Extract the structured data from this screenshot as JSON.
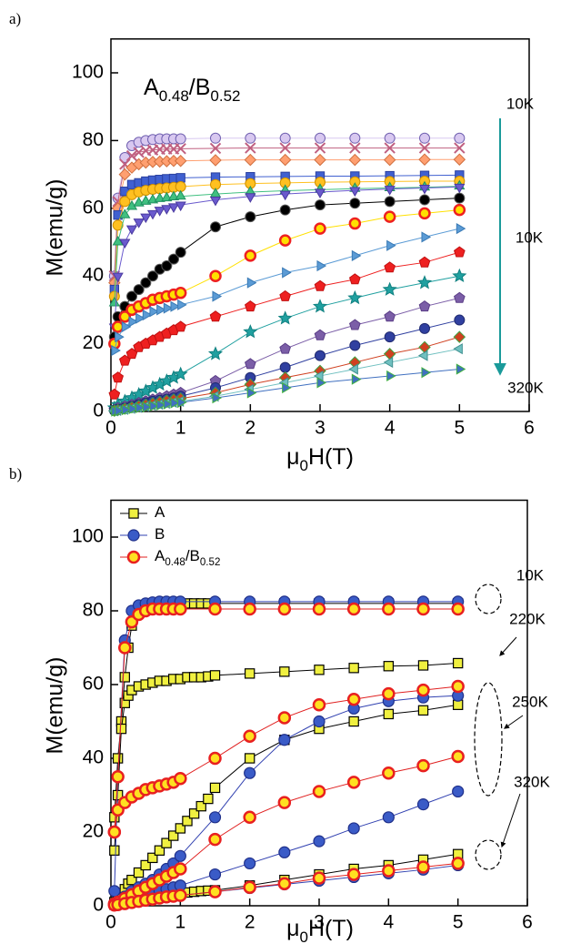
{
  "chart_data": [
    {
      "type": "line",
      "panel_label": "a)",
      "inset_label": "A0.48/B0.52",
      "x_label": "μ0H(T)",
      "y_label": "M(emu/g)",
      "xlim": [
        0,
        6
      ],
      "ylim": [
        0,
        110
      ],
      "xticks": [
        0,
        1,
        2,
        3,
        4,
        5,
        6
      ],
      "yticks": [
        0,
        20,
        40,
        60,
        80,
        100
      ],
      "annotations": [
        "10K",
        "10K",
        "320K"
      ],
      "x": [
        0.05,
        0.1,
        0.2,
        0.3,
        0.4,
        0.5,
        0.6,
        0.7,
        0.8,
        0.9,
        1,
        1.5,
        2,
        2.5,
        3,
        3.5,
        4,
        4.5,
        5
      ],
      "series": [
        {
          "color": "#d8c8f0",
          "edge": "#7060b0",
          "marker": "circle",
          "values": [
            40,
            63,
            75,
            78.5,
            79.5,
            80,
            80.3,
            80.5,
            80.5,
            80.5,
            80.5,
            80.7,
            80.7,
            80.7,
            80.7,
            80.7,
            80.7,
            80.7,
            80.7
          ]
        },
        {
          "color": "#c06080",
          "edge": "#c06080",
          "marker": "x",
          "values": [
            40,
            62,
            73,
            75.5,
            76.5,
            77,
            77.2,
            77.4,
            77.5,
            77.5,
            77.6,
            77.7,
            77.8,
            77.8,
            77.8,
            77.8,
            77.8,
            77.8,
            77.8
          ]
        },
        {
          "color": "#ff9f70",
          "edge": "#d07040",
          "marker": "diamond",
          "values": [
            38,
            60,
            70,
            72,
            73,
            73.5,
            73.7,
            73.8,
            73.9,
            74,
            74,
            74.2,
            74.3,
            74.3,
            74.3,
            74.3,
            74.3,
            74.4,
            74.4
          ]
        },
        {
          "color": "#4060d0",
          "edge": "#2a40a0",
          "marker": "square",
          "values": [
            36,
            58,
            65,
            67,
            67.5,
            68,
            68.3,
            68.5,
            68.7,
            68.8,
            69,
            69.2,
            69.3,
            69.4,
            69.5,
            69.5,
            69.6,
            69.7,
            69.8
          ]
        },
        {
          "color": "#ffc020",
          "edge": "#d09000",
          "marker": "circle",
          "values": [
            34,
            55,
            62,
            64,
            64.8,
            65.3,
            65.6,
            65.8,
            66,
            66.2,
            66.4,
            67,
            67.3,
            67.5,
            67.7,
            67.8,
            67.9,
            68,
            68
          ]
        },
        {
          "color": "#40c080",
          "edge": "#209060",
          "marker": "triangle",
          "values": [
            32,
            50,
            58,
            60.5,
            61.5,
            62,
            62.4,
            62.8,
            63,
            63.3,
            63.5,
            64.2,
            64.8,
            65.2,
            65.5,
            65.8,
            66,
            66.2,
            66.5
          ]
        },
        {
          "color": "#6a5acd",
          "edge": "#4a3aa0",
          "marker": "triangle-down",
          "values": [
            25,
            40,
            50,
            54,
            56,
            57.5,
            58.5,
            59.5,
            60,
            60.5,
            61,
            62.5,
            63.5,
            64.2,
            64.8,
            65.3,
            65.7,
            66,
            66.3
          ]
        },
        {
          "color": "#000000",
          "edge": "#555555",
          "marker": "circle",
          "values": [
            22,
            28,
            31,
            34,
            36,
            38,
            40,
            42,
            43,
            45,
            47,
            54.5,
            57.5,
            59.5,
            61,
            61.5,
            62,
            62.5,
            63
          ]
        },
        {
          "color": "#ffe000",
          "edge": "#ee2020",
          "marker": "circle",
          "values": [
            20,
            25,
            28,
            30,
            31,
            32,
            33,
            33.5,
            34,
            34.5,
            35,
            40,
            46,
            50.5,
            54,
            55.5,
            57.5,
            58.5,
            59.5
          ]
        },
        {
          "color": "#5b9bd5",
          "edge": "#3a7ab5",
          "marker": "triangle-right",
          "values": [
            18,
            22,
            25,
            26.5,
            27.5,
            28.5,
            29.5,
            30,
            30.5,
            31,
            31.5,
            34,
            38,
            41,
            43,
            46,
            49,
            51.5,
            54
          ]
        },
        {
          "color": "#ee2020",
          "edge": "#c01010",
          "marker": "pentagon",
          "values": [
            5,
            10,
            15,
            17,
            19,
            20,
            21,
            22,
            23,
            24,
            25,
            28,
            31,
            34,
            37,
            39,
            42.5,
            44,
            47
          ]
        },
        {
          "color": "#20a0a0",
          "edge": "#108080",
          "marker": "star",
          "values": [
            1,
            2,
            3,
            4,
            5,
            6,
            7,
            8,
            9,
            10,
            11,
            17,
            23.5,
            27.5,
            31,
            33.5,
            36,
            38,
            40
          ]
        },
        {
          "color": "#7b5ea7",
          "edge": "#5b3e87",
          "marker": "pentagon",
          "values": [
            0.5,
            1,
            1.5,
            2,
            2.5,
            3,
            3.5,
            4,
            4.5,
            5,
            5.5,
            9,
            14,
            18.5,
            22.5,
            25.5,
            28,
            31,
            33.5
          ]
        },
        {
          "color": "#3040a0",
          "edge": "#202a70",
          "marker": "circle",
          "values": [
            0.3,
            0.6,
            1,
            1.5,
            2,
            2.5,
            3,
            3.3,
            3.6,
            4,
            4.5,
            7,
            10,
            13,
            16.5,
            19.5,
            22,
            24.5,
            27
          ]
        },
        {
          "color": "#d04020",
          "edge": "#40a040",
          "marker": "diamond",
          "values": [
            0.2,
            0.4,
            0.8,
            1.2,
            1.6,
            2,
            2.4,
            2.8,
            3.2,
            3.5,
            3.8,
            5.5,
            8,
            10,
            12,
            14.5,
            17,
            19,
            22
          ]
        },
        {
          "color": "#70c0c0",
          "edge": "#409090",
          "marker": "triangle-left",
          "values": [
            0.2,
            0.3,
            0.6,
            0.9,
            1.2,
            1.5,
            1.8,
            2.1,
            2.4,
            2.7,
            3,
            4.5,
            6.5,
            8.5,
            10.5,
            12.5,
            14.5,
            16.5,
            18.5
          ]
        },
        {
          "color": "#4070c0",
          "edge": "#40b040",
          "marker": "triangle-right",
          "values": [
            0.1,
            0.2,
            0.5,
            0.8,
            1.1,
            1.3,
            1.6,
            1.9,
            2.2,
            2.5,
            2.7,
            4,
            5.5,
            7,
            8.5,
            9.5,
            10.5,
            11.5,
            12.5
          ]
        }
      ]
    },
    {
      "type": "line",
      "panel_label": "b)",
      "x_label": "μ0H(T)",
      "y_label": "M(emu/g)",
      "xlim": [
        0,
        6
      ],
      "ylim": [
        0,
        110
      ],
      "xticks": [
        0,
        1,
        2,
        3,
        4,
        5,
        6
      ],
      "yticks": [
        0,
        20,
        40,
        60,
        80,
        100
      ],
      "annotations": [
        "10K",
        "220K",
        "250K",
        "320K"
      ],
      "series": [
        {
          "name": "A",
          "color": "#f0f040",
          "edge": "#000000",
          "line": "#000000",
          "marker": "square",
          "x": [
            0.05,
            0.1,
            0.15,
            0.2,
            0.25,
            0.3,
            0.4,
            0.5,
            0.6,
            0.7,
            0.8,
            0.9,
            1,
            1.1,
            1.2,
            1.3,
            1.4,
            1.5,
            2,
            2.5,
            3,
            3.5,
            4,
            4.5,
            5
          ],
          "curves": [
            {
              "values": [
                24,
                40,
                50,
                62,
                70,
                76,
                80,
                81.5,
                82,
                82,
                82,
                82,
                82,
                82,
                82,
                82,
                82,
                82,
                82,
                82,
                82,
                82,
                82,
                82,
                82
              ]
            },
            {
              "values": [
                15,
                30,
                48,
                55,
                57,
                58.5,
                59.5,
                60,
                60.5,
                61,
                61,
                61.5,
                61.5,
                62,
                62,
                62,
                62.2,
                62.5,
                63,
                63.5,
                64,
                64.5,
                65,
                65.2,
                65.8
              ]
            },
            {
              "values": [
                1,
                2,
                3,
                4.5,
                6,
                7,
                9,
                11,
                13,
                15,
                17,
                19,
                21,
                23,
                25,
                27,
                29,
                32,
                40,
                45,
                48,
                50,
                52,
                53,
                54.5
              ]
            },
            {
              "values": [
                0.3,
                0.5,
                0.8,
                1,
                1.2,
                1.5,
                1.8,
                2.1,
                2.4,
                2.7,
                3,
                3.2,
                3.4,
                3.6,
                3.8,
                4,
                4.1,
                4.2,
                5.5,
                7,
                8.5,
                10,
                11,
                12.5,
                14
              ]
            }
          ]
        },
        {
          "name": "B",
          "color": "#3a5bc7",
          "edge": "#20308a",
          "line": "#3040b0",
          "marker": "circle",
          "x": [
            0.05,
            0.1,
            0.2,
            0.3,
            0.4,
            0.5,
            0.6,
            0.7,
            0.8,
            0.9,
            1,
            1.5,
            2,
            2.5,
            3,
            3.5,
            4,
            4.5,
            5
          ],
          "curves": [
            {
              "values": [
                4,
                35,
                72,
                80,
                81.5,
                82,
                82.3,
                82.5,
                82.5,
                82.5,
                82.5,
                82.5,
                82.5,
                82.5,
                82.5,
                82.5,
                82.5,
                82.5,
                82.5
              ]
            },
            {
              "values": [
                0.5,
                1,
                2.5,
                4,
                5,
                6,
                7,
                8.5,
                10,
                11.5,
                13.5,
                24,
                36,
                45,
                50,
                53.5,
                55.5,
                56.5,
                57
              ]
            },
            {
              "values": [
                0.3,
                0.6,
                1.2,
                1.8,
                2.4,
                3,
                3.5,
                4,
                4.5,
                5,
                5.5,
                8.5,
                11.5,
                14.5,
                17.5,
                21,
                24,
                27.5,
                31
              ]
            },
            {
              "values": [
                0.2,
                0.3,
                0.6,
                0.9,
                1.2,
                1.5,
                1.8,
                2.1,
                2.4,
                2.6,
                2.8,
                3.8,
                4.8,
                5.8,
                6.8,
                7.8,
                8.8,
                9.8,
                11
              ]
            }
          ]
        },
        {
          "name": "A0.48/B0.52",
          "color": "#ffe020",
          "edge": "#e82020",
          "line": "#e02020",
          "marker": "circle",
          "x": [
            0.05,
            0.1,
            0.2,
            0.3,
            0.4,
            0.5,
            0.6,
            0.7,
            0.8,
            0.9,
            1,
            1.5,
            2,
            2.5,
            3,
            3.5,
            4,
            4.5,
            5
          ],
          "curves": [
            {
              "values": [
                20,
                35,
                70,
                77,
                79,
                80,
                80.5,
                80.5,
                80.5,
                80.5,
                80.5,
                80.5,
                80.5,
                80.5,
                80.5,
                80.5,
                80.5,
                80.5,
                80.5
              ]
            },
            {
              "values": [
                20,
                26,
                28,
                29.5,
                30.5,
                31.5,
                32,
                32.5,
                33,
                33.5,
                34.5,
                40,
                46,
                51,
                54.5,
                56,
                57.5,
                58.5,
                59.5
              ]
            },
            {
              "values": [
                0.5,
                1,
                2,
                3,
                4,
                5,
                6,
                7,
                8,
                9,
                10,
                18,
                24,
                28,
                31,
                33.5,
                36,
                38,
                40.5
              ]
            },
            {
              "values": [
                0.2,
                0.3,
                0.6,
                0.9,
                1.2,
                1.5,
                1.8,
                2.1,
                2.4,
                2.6,
                2.8,
                3.8,
                5,
                6,
                7.5,
                8.5,
                9.5,
                10.5,
                11.5
              ]
            }
          ]
        }
      ]
    }
  ]
}
